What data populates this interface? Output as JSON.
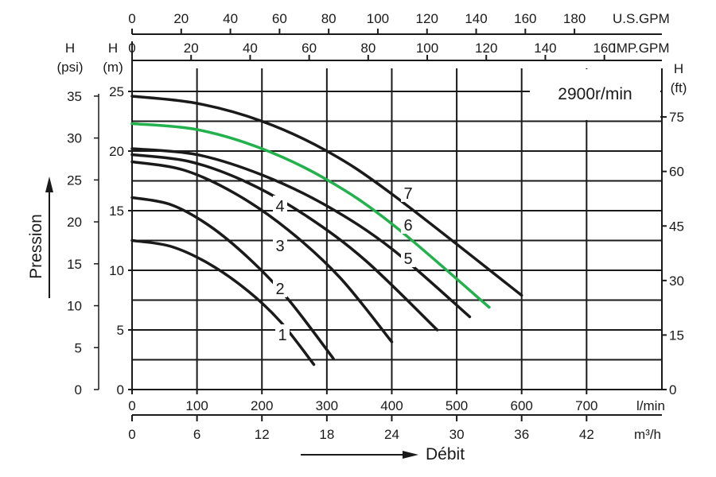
{
  "chart_data": {
    "type": "line",
    "title": "",
    "speed_label": "2900r/min",
    "xlabel": "Débit",
    "ylabel": "Pression",
    "x_axes": {
      "lmin": {
        "unit": "l/min",
        "ticks": [
          0,
          100,
          200,
          300,
          400,
          500,
          600,
          700
        ]
      },
      "m3h": {
        "unit": "m³/h",
        "ticks": [
          0,
          6,
          12,
          18,
          24,
          30,
          36,
          42
        ]
      },
      "usgpm": {
        "unit": "U.S.GPM",
        "ticks": [
          0,
          20,
          40,
          60,
          80,
          100,
          120,
          140,
          160,
          180
        ]
      },
      "impgpm": {
        "unit": "IMP.GPM",
        "ticks": [
          0,
          20,
          40,
          60,
          80,
          100,
          120,
          140,
          160
        ]
      }
    },
    "y_axes": {
      "m": {
        "header": [
          "H",
          "(m)"
        ],
        "ticks": [
          0,
          5,
          10,
          15,
          20,
          25
        ]
      },
      "psi": {
        "header": [
          "H",
          "(psi)"
        ],
        "ticks": [
          0,
          5,
          10,
          15,
          20,
          25,
          30,
          35
        ]
      },
      "ft": {
        "header": [
          "H",
          "(ft)"
        ],
        "ticks": [
          0,
          15,
          30,
          45,
          60,
          75
        ]
      }
    },
    "xlim": [
      0,
      816
    ],
    "ylim": [
      0,
      27
    ],
    "grid": true,
    "series": [
      {
        "name": "1",
        "color": "#1a1a1a",
        "x": [
          0,
          60,
          120,
          180,
          230,
          280
        ],
        "y": [
          12.5,
          12.0,
          10.5,
          8.2,
          5.6,
          2.1
        ]
      },
      {
        "name": "2",
        "color": "#1a1a1a",
        "x": [
          0,
          60,
          120,
          180,
          240,
          310
        ],
        "y": [
          16.1,
          15.5,
          13.7,
          11.0,
          7.6,
          2.6
        ]
      },
      {
        "name": "3",
        "color": "#1a1a1a",
        "x": [
          0,
          80,
          160,
          240,
          320,
          400
        ],
        "y": [
          19.1,
          18.4,
          16.4,
          13.4,
          9.4,
          4.0
        ]
      },
      {
        "name": "4",
        "color": "#1a1a1a",
        "x": [
          0,
          90,
          180,
          270,
          360,
          470
        ],
        "y": [
          19.7,
          19.1,
          17.3,
          14.5,
          10.8,
          5.0
        ]
      },
      {
        "name": "5",
        "color": "#1a1a1a",
        "x": [
          0,
          100,
          200,
          300,
          400,
          520
        ],
        "y": [
          20.2,
          19.7,
          18.0,
          15.4,
          11.8,
          6.1
        ]
      },
      {
        "name": "6",
        "color": "#22b14c",
        "x": [
          0,
          100,
          200,
          300,
          400,
          550
        ],
        "y": [
          22.3,
          21.8,
          20.2,
          17.6,
          13.9,
          6.9
        ]
      },
      {
        "name": "7",
        "color": "#1a1a1a",
        "x": [
          0,
          100,
          200,
          300,
          400,
          600
        ],
        "y": [
          24.6,
          24.0,
          22.5,
          20.0,
          16.4,
          7.9
        ]
      }
    ]
  }
}
